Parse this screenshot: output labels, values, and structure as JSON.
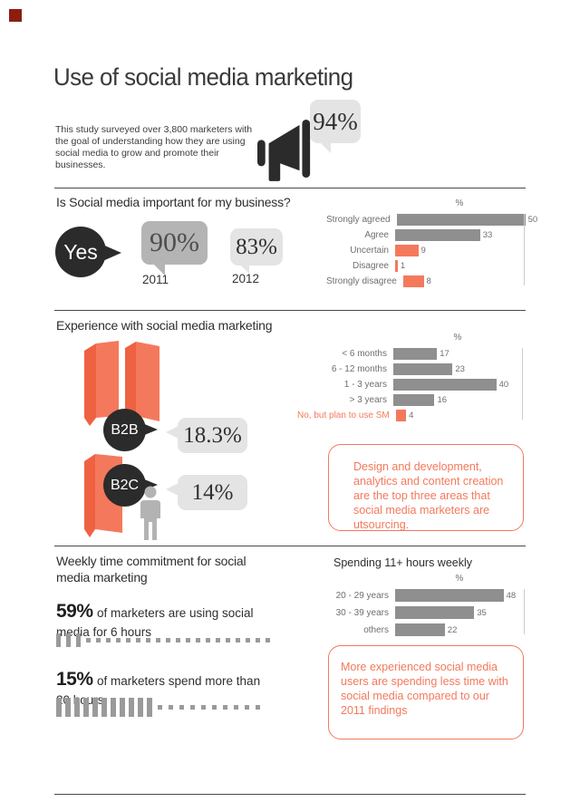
{
  "colors": {
    "accent": "#f4795c",
    "accent_side": "#ee6242",
    "bar_gray": "#8f8f8f",
    "dark": "#2b2b2b",
    "bubble_light": "#e4e4e4",
    "bubble_medium": "#b4b4b4",
    "logo_red": "#8b1e10"
  },
  "header": {
    "title": "Use of social media marketing",
    "intro": "This study surveyed over 3,800 marketers with the goal of understanding how they are using social media to grow and promote their businesses.",
    "headline_stat": "94%"
  },
  "importance": {
    "heading": "Is Social media important for my business?",
    "answer": "Yes",
    "stats": [
      {
        "value": "90%",
        "year": "2011"
      },
      {
        "value": "83%",
        "year": "2012"
      }
    ]
  },
  "experience": {
    "heading": "Experience with social media marketing",
    "segments": [
      {
        "label": "B2B",
        "value": "18.3%"
      },
      {
        "label": "B2C",
        "value": "14%"
      }
    ],
    "note": "Design and development, analytics and content creation are the top three areas that social media marketers are utsourcing."
  },
  "time": {
    "heading": "Weekly time commitment for social media marketing",
    "stats": [
      {
        "value": "59%",
        "text": "of marketers are using social media for 6 hours",
        "filled": 3,
        "dotted": 19
      },
      {
        "value": "15%",
        "text": "of marketers spend more than 20 hours",
        "filled": 11,
        "dotted": 10
      }
    ],
    "chart_title": "Spending 11+ hours weekly",
    "note": "More experienced social media users are spending less time with social media compared to our 2011 findings"
  },
  "chart_data": [
    {
      "type": "bar",
      "orientation": "horizontal",
      "title": "%",
      "categories": [
        "Strongly agreed",
        "Agree",
        "Uncertain",
        "Disagree",
        "Strongly disagree"
      ],
      "values": [
        50,
        33,
        9,
        1,
        8
      ],
      "xlim": [
        0,
        50
      ],
      "xmax": 50,
      "bar_colors": [
        "gray",
        "gray",
        "accent",
        "accent",
        "accent"
      ],
      "label_colors": [
        "gray",
        "gray",
        "gray",
        "gray",
        "gray"
      ],
      "grid": false,
      "legend": "none"
    },
    {
      "type": "bar",
      "orientation": "horizontal",
      "title": "%",
      "categories": [
        "< 6 months",
        "6 - 12 months",
        "1 - 3 years",
        "> 3 years",
        "No, but plan to use SM"
      ],
      "values": [
        17,
        23,
        40,
        16,
        4
      ],
      "xlim": [
        0,
        50
      ],
      "xmax": 50,
      "bar_colors": [
        "gray",
        "gray",
        "gray",
        "gray",
        "accent"
      ],
      "label_colors": [
        "gray",
        "gray",
        "gray",
        "gray",
        "accent"
      ],
      "grid": false,
      "legend": "none"
    },
    {
      "type": "bar",
      "orientation": "horizontal",
      "title": "%",
      "categories": [
        "20 - 29 years",
        "30 - 39 years",
        "others"
      ],
      "values": [
        48,
        35,
        22
      ],
      "xlim": [
        0,
        57
      ],
      "xmax": 57,
      "bar_colors": [
        "gray",
        "gray",
        "gray"
      ],
      "label_colors": [
        "gray",
        "gray",
        "gray"
      ],
      "grid": false,
      "legend": "none"
    }
  ]
}
